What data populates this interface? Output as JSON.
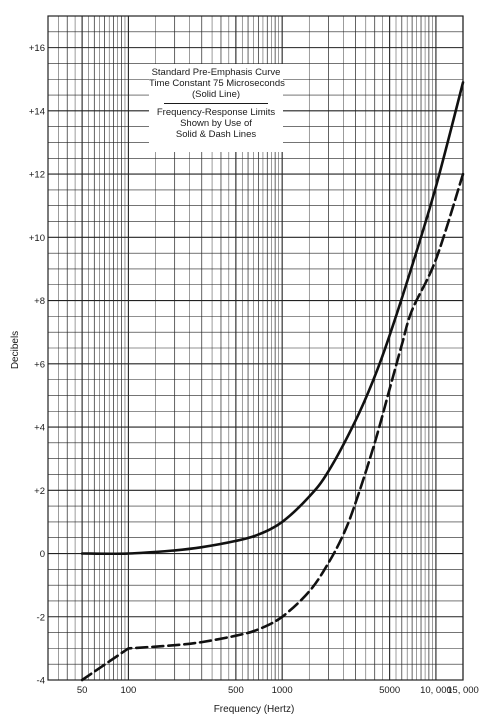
{
  "chart_data": {
    "type": "line",
    "xlabel": "Frequency (Hertz)",
    "ylabel": "Decibels",
    "x_scale": "log",
    "xlim": [
      30,
      15000
    ],
    "ylim": [
      -4,
      17
    ],
    "grid": true,
    "x_tick_labels": [
      "50",
      "100",
      "500",
      "1000",
      "5000",
      "10, 000",
      "15, 000"
    ],
    "x_tick_values": [
      50,
      100,
      500,
      1000,
      5000,
      10000,
      15000
    ],
    "y_tick_labels": [
      "-4",
      "-2",
      "0",
      "+2",
      "+4",
      "+6",
      "+8",
      "+10",
      "+12",
      "+14",
      "+16"
    ],
    "y_tick_values": [
      -4,
      -2,
      0,
      2,
      4,
      6,
      8,
      10,
      12,
      14,
      16
    ],
    "annotations": {
      "line1": "Standard Pre-Emphasis Curve",
      "line2": "Time Constant 75 Microseconds",
      "line3": "(Solid Line)",
      "line4": "Frequency-Response Limits",
      "line5": "Shown by Use of",
      "line6": "Solid & Dash Lines"
    },
    "series": [
      {
        "style": "solid",
        "x": [
          50,
          100,
          200,
          300,
          500,
          700,
          1000,
          1500,
          2000,
          3000,
          4000,
          5000,
          7000,
          10000,
          15000
        ],
        "y": [
          0,
          0,
          0.1,
          0.2,
          0.4,
          0.6,
          1.0,
          1.8,
          2.6,
          4.2,
          5.6,
          6.9,
          9.1,
          11.6,
          14.9
        ]
      },
      {
        "style": "dashed",
        "x": [
          50,
          100,
          200,
          300,
          500,
          700,
          1000,
          1500,
          2000,
          2500,
          3000,
          4000,
          5000,
          6000,
          7000,
          10000,
          15000
        ],
        "y": [
          -4.0,
          -3.0,
          -2.9,
          -2.8,
          -2.6,
          -2.4,
          -2.0,
          -1.2,
          -0.3,
          0.6,
          1.6,
          3.5,
          5.2,
          6.6,
          7.7,
          9.3,
          12.0
        ]
      }
    ]
  }
}
